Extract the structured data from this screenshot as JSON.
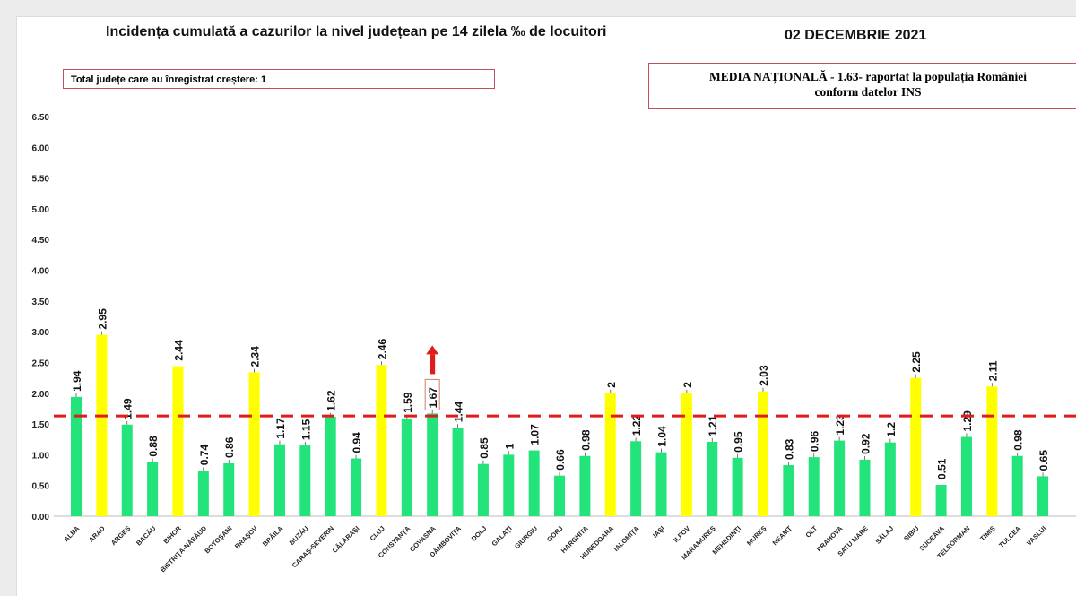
{
  "header": {
    "title": "Incidența cumulată a cazurilor la nivel județean pe 14 zilela ‰ de locuitori",
    "date": "02 DECEMBRIE 2021",
    "increase_count_text": "Total județe care au înregistrat creștere: 1",
    "national_mean_line1": "MEDIA NAȚIONALĂ  - 1.63-  raportat la populația României",
    "national_mean_line2": "conform datelor INS"
  },
  "chart_data": {
    "type": "bar",
    "title": "Incidența cumulată a cazurilor la nivel județean pe 14 zilela ‰ de locuitori",
    "ylim": [
      0,
      6.5
    ],
    "yticks": [
      "0.00",
      "0.50",
      "1.00",
      "1.50",
      "2.00",
      "2.50",
      "3.00",
      "3.50",
      "4.00",
      "4.50",
      "5.00",
      "5.50",
      "6.00",
      "6.50"
    ],
    "grid": false,
    "reference_line": {
      "value": 1.63,
      "color": "#e01b1b",
      "style": "dashed"
    },
    "colors": {
      "below_2": "#22e47a",
      "at_or_above_2": "#ffff00"
    },
    "highlight": {
      "category": "COVASNA",
      "marker": "red-up-arrow",
      "color": "#e01b1b"
    },
    "categories": [
      "ALBA",
      "ARAD",
      "ARGEŞ",
      "BACĂU",
      "BIHOR",
      "BISTRIŢA-NĂSĂUD",
      "BOTOŞANI",
      "BRAŞOV",
      "BRĂILA",
      "BUZĂU",
      "CARAŞ-SEVERIN",
      "CĂLĂRAŞI",
      "CLUJ",
      "CONSTANŢA",
      "COVASNA",
      "DÂMBOVIŢA",
      "DOLJ",
      "GALAŢI",
      "GIURGIU",
      "GORJ",
      "HARGHITA",
      "HUNEDOARA",
      "IALOMIŢA",
      "IAŞI",
      "ILFOV",
      "MARAMUREŞ",
      "MEHEDINŢI",
      "MUREŞ",
      "NEAMŢ",
      "OLT",
      "PRAHOVA",
      "SATU MARE",
      "SĂLAJ",
      "SIBIU",
      "SUCEAVA",
      "TELEORMAN",
      "TIMIŞ",
      "TULCEA",
      "VASLUI"
    ],
    "values": [
      1.94,
      2.95,
      1.49,
      0.88,
      2.44,
      0.74,
      0.86,
      2.34,
      1.17,
      1.15,
      1.62,
      0.94,
      2.46,
      1.59,
      1.67,
      1.44,
      0.85,
      1,
      1.07,
      0.66,
      0.98,
      2,
      1.22,
      1.04,
      2,
      1.21,
      0.95,
      2.03,
      0.83,
      0.96,
      1.23,
      0.92,
      1.2,
      2.25,
      0.51,
      1.29,
      2.11,
      0.98,
      0.65
    ]
  }
}
